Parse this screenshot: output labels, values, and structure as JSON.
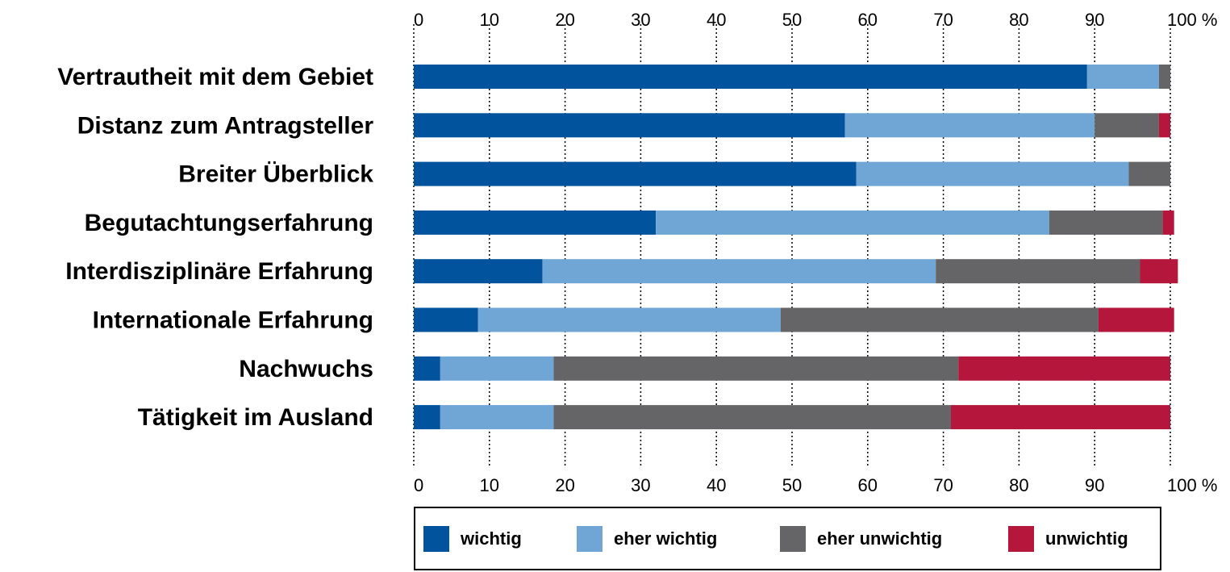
{
  "chart_data": {
    "type": "bar",
    "orientation": "horizontal",
    "stacked": true,
    "categories": [
      "Vertrautheit mit dem Gebiet",
      "Distanz zum Antragsteller",
      "Breiter Überblick",
      "Begutachtungserfahrung",
      "Interdisziplinäre Erfahrung",
      "Internationale Erfahrung",
      "Nachwuchs",
      "Tätigkeit im Ausland"
    ],
    "series": [
      {
        "name": "wichtig",
        "color": "#00539c",
        "values": [
          89,
          57,
          58.5,
          32,
          17,
          8.5,
          3.5,
          3.5
        ]
      },
      {
        "name": "eher wichtig",
        "color": "#6fa6d5",
        "values": [
          9.5,
          33,
          36,
          52,
          52,
          40,
          15,
          15
        ]
      },
      {
        "name": "eher unwichtig",
        "color": "#656567",
        "values": [
          1.5,
          8.5,
          5.5,
          15,
          27,
          42,
          53.5,
          52.5
        ]
      },
      {
        "name": "unwichtig",
        "color": "#b5163c",
        "values": [
          0,
          1.5,
          0,
          1.5,
          5,
          10,
          28,
          29
        ]
      }
    ],
    "xlim": [
      0,
      100
    ],
    "xticks": [
      0,
      10,
      20,
      30,
      40,
      50,
      60,
      70,
      80,
      90,
      100
    ],
    "xtick_labels": [
      "0",
      "10",
      "20",
      "30",
      "40",
      "50",
      "60",
      "70",
      "80",
      "90",
      "100 %"
    ],
    "grid": "vertical dotted",
    "legend": "bottom"
  }
}
